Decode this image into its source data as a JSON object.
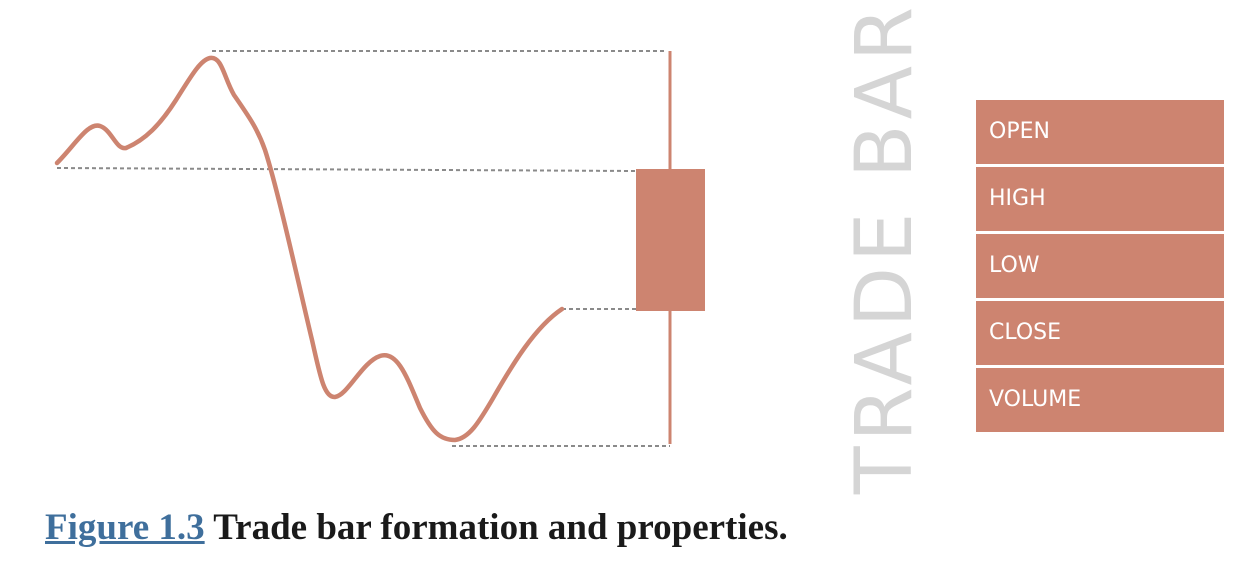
{
  "diagram": {
    "vertical_title": "TRADE BAR",
    "accent_color": "#cd8470",
    "guide_color": "#8a8a8a",
    "title_color": "#d5d5d5",
    "link_color": "#3f6f9c",
    "properties": [
      "OPEN",
      "HIGH",
      "LOW",
      "CLOSE",
      "VOLUME"
    ]
  },
  "caption": {
    "link": "Figure 1.3",
    "text": " Trade bar formation and properties."
  }
}
